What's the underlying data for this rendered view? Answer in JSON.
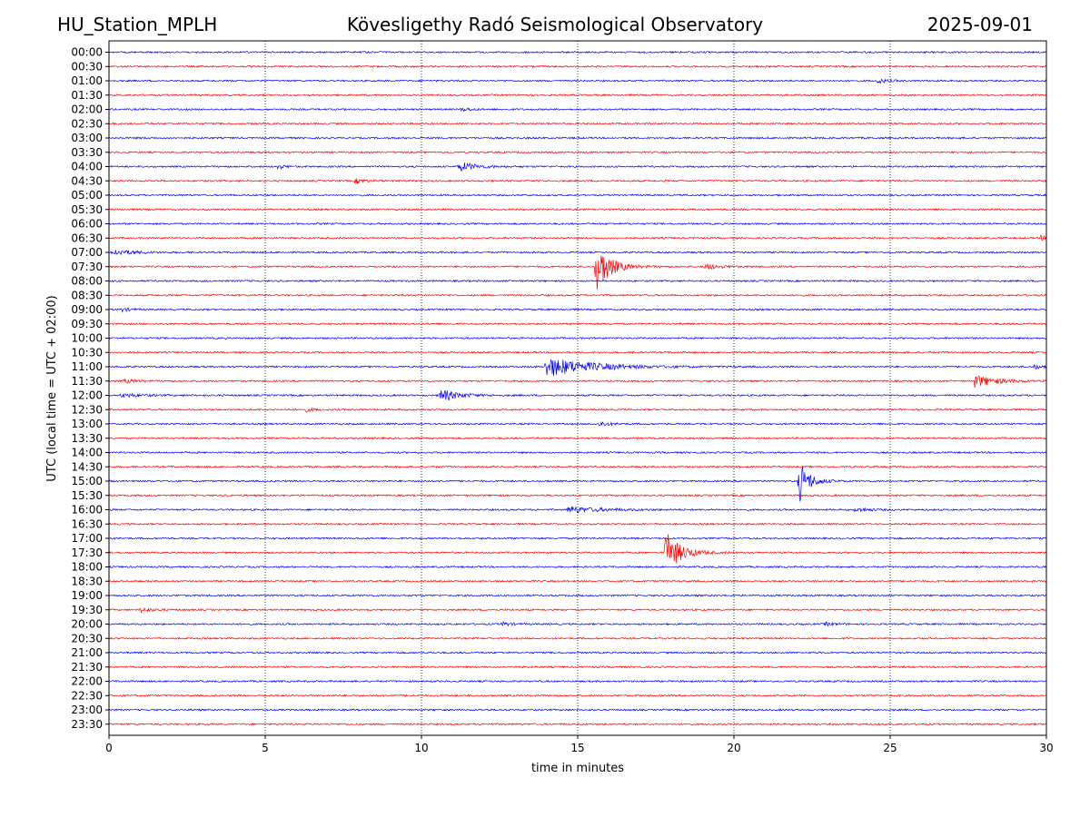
{
  "header": {
    "station": "HU_Station_MPLH",
    "observatory": "Kövesligethy Radó Seismological Observatory",
    "date": "2025-09-01"
  },
  "chart_data": {
    "type": "line",
    "xlabel": "time in minutes",
    "ylabel": "UTC (local time = UTC + 02:00)",
    "xlim": [
      0,
      30
    ],
    "xticks": [
      0,
      5,
      10,
      15,
      20,
      25,
      30
    ],
    "vertical_grid": "dotted, at each x tick",
    "row_colors": [
      "#0000ff",
      "#ff0000"
    ],
    "rows": [
      "00:00",
      "00:30",
      "01:00",
      "01:30",
      "02:00",
      "02:30",
      "03:00",
      "03:30",
      "04:00",
      "04:30",
      "05:00",
      "05:30",
      "06:00",
      "06:30",
      "07:00",
      "07:30",
      "08:00",
      "08:30",
      "09:00",
      "09:30",
      "10:00",
      "10:30",
      "11:00",
      "11:30",
      "12:00",
      "12:30",
      "13:00",
      "13:30",
      "14:00",
      "14:30",
      "15:00",
      "15:30",
      "16:00",
      "16:30",
      "17:00",
      "17:30",
      "18:00",
      "18:30",
      "19:00",
      "19:30",
      "20:00",
      "20:30",
      "21:00",
      "21:30",
      "22:00",
      "22:30",
      "23:00",
      "23:30"
    ],
    "events": [
      {
        "row": "01:00",
        "x": 24.6,
        "amp": 2.5,
        "dur": 0.6
      },
      {
        "row": "02:00",
        "x": 11.3,
        "amp": 2.0,
        "dur": 0.6
      },
      {
        "row": "04:00",
        "x": 5.4,
        "amp": 3.0,
        "dur": 0.4
      },
      {
        "row": "04:00",
        "x": 11.2,
        "amp": 5.0,
        "dur": 1.2
      },
      {
        "row": "04:30",
        "x": 7.9,
        "amp": 3.0,
        "dur": 0.6
      },
      {
        "row": "06:30",
        "x": 29.8,
        "amp": 3.0,
        "dur": 0.3
      },
      {
        "row": "07:00",
        "x": 0.1,
        "amp": 3.5,
        "dur": 1.4
      },
      {
        "row": "07:30",
        "x": 15.6,
        "amp": 28.0,
        "dur": 0.9
      },
      {
        "row": "07:30",
        "x": 19.1,
        "amp": 3.5,
        "dur": 0.8
      },
      {
        "row": "09:00",
        "x": 0.4,
        "amp": 2.0,
        "dur": 0.6
      },
      {
        "row": "11:00",
        "x": 14.0,
        "amp": 11.0,
        "dur": 3.0
      },
      {
        "row": "11:00",
        "x": 29.6,
        "amp": 2.5,
        "dur": 0.6
      },
      {
        "row": "11:30",
        "x": 0.5,
        "amp": 2.0,
        "dur": 0.8
      },
      {
        "row": "11:30",
        "x": 27.7,
        "amp": 7.0,
        "dur": 1.4
      },
      {
        "row": "12:00",
        "x": 10.6,
        "amp": 7.0,
        "dur": 1.2
      },
      {
        "row": "12:00",
        "x": 0.4,
        "amp": 2.0,
        "dur": 1.5
      },
      {
        "row": "12:30",
        "x": 6.3,
        "amp": 2.0,
        "dur": 0.6
      },
      {
        "row": "13:00",
        "x": 15.7,
        "amp": 3.0,
        "dur": 0.6
      },
      {
        "row": "15:00",
        "x": 22.1,
        "amp": 22.0,
        "dur": 0.7
      },
      {
        "row": "16:00",
        "x": 14.7,
        "amp": 3.5,
        "dur": 2.2
      },
      {
        "row": "16:00",
        "x": 23.9,
        "amp": 2.5,
        "dur": 0.8
      },
      {
        "row": "17:30",
        "x": 17.8,
        "amp": 24.0,
        "dur": 1.0
      },
      {
        "row": "19:30",
        "x": 1.0,
        "amp": 2.5,
        "dur": 0.8
      },
      {
        "row": "20:00",
        "x": 12.6,
        "amp": 2.0,
        "dur": 0.6
      },
      {
        "row": "20:00",
        "x": 22.9,
        "amp": 1.8,
        "dur": 0.6
      }
    ]
  }
}
